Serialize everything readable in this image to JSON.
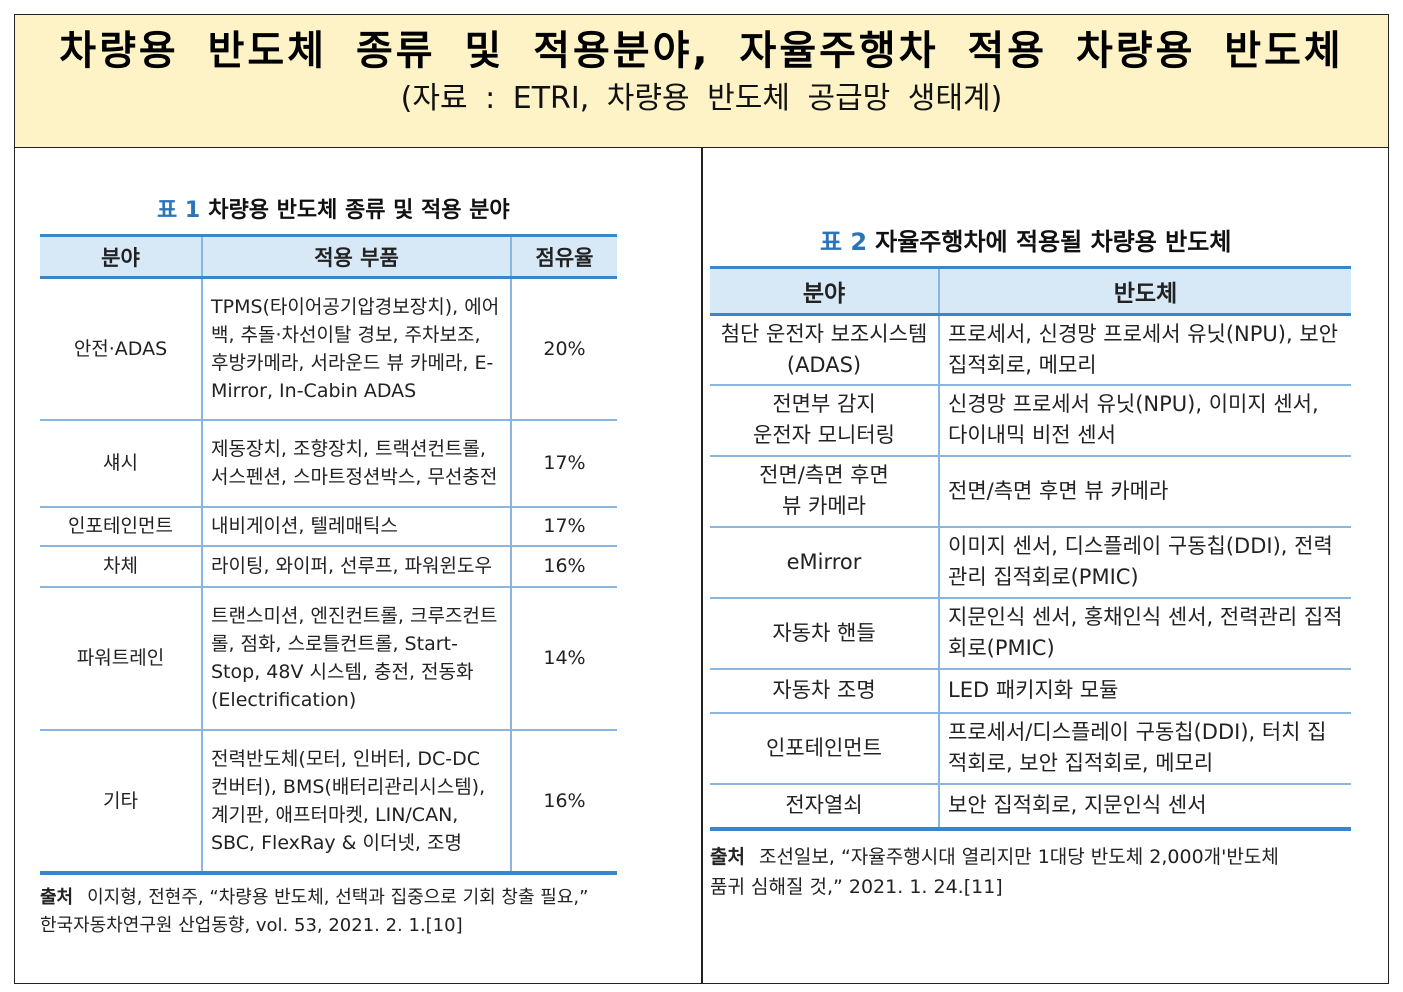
{
  "header": {
    "title": "차량용 반도체 종류 및 적용분야, 자율주행차 적용 차량용 반도체",
    "subtitle": "(자료 : ETRI, 차량용 반도체 공급망 생태계)"
  },
  "table1": {
    "caption_num": "표 1",
    "caption_text": "차량용 반도체 종류 및 적용 분야",
    "columns": [
      "분야",
      "적용 부품",
      "점유율"
    ],
    "rows": [
      {
        "field": "안전·ADAS",
        "parts": "TPMS(타이어공기압경보장치), 에어백, 추돌·차선이탈 경보, 주차보조, 후방카메라, 서라운드 뷰 카메라, E-Mirror, In-Cabin ADAS",
        "share": "20%"
      },
      {
        "field": "섀시",
        "parts": "제동장치, 조향장치, 트랙션컨트롤, 서스펜션, 스마트정션박스, 무선충전",
        "share": "17%"
      },
      {
        "field": "인포테인먼트",
        "parts": "내비게이션, 텔레매틱스",
        "share": "17%"
      },
      {
        "field": "차체",
        "parts": "라이팅, 와이퍼, 선루프, 파워윈도우",
        "share": "16%"
      },
      {
        "field": "파워트레인",
        "parts": "트랜스미션, 엔진컨트롤, 크루즈컨트롤, 점화, 스로틀컨트롤, Start-Stop, 48V 시스템, 충전, 전동화(Electrification)",
        "share": "14%"
      },
      {
        "field": "기타",
        "parts": "전력반도체(모터, 인버터, DC-DC 컨버터), BMS(배터리관리시스템), 계기판, 애프터마켓, LIN/CAN, SBC, FlexRay & 이더넷, 조명",
        "share": "16%"
      }
    ],
    "source_label": "출처",
    "source_line1": "이지형, 전현주, “차량용 반도체, 선택과 집중으로 기회 창출 필요,”",
    "source_line2": "한국자동차연구원 산업동향, vol. 53, 2021. 2. 1.[10]"
  },
  "table2": {
    "caption_num": "표 2",
    "caption_text": "자율주행차에 적용될 차량용 반도체",
    "columns": [
      "분야",
      "반도체"
    ],
    "rows": [
      {
        "field_l1": "첨단 운전자 보조시스템",
        "field_l2": "(ADAS)",
        "semis": "프로세서, 신경망 프로세서 유닛(NPU), 보안 집적회로, 메모리"
      },
      {
        "field_l1": "전면부 감지",
        "field_l2": "운전자 모니터링",
        "semis": "신경망 프로세서 유닛(NPU), 이미지 센서, 다이내믹 비전 센서"
      },
      {
        "field_l1": "전면/측면 후면",
        "field_l2": "뷰 카메라",
        "semis": "전면/측면 후면 뷰 카메라"
      },
      {
        "field_l1": "eMirror",
        "field_l2": "",
        "semis": "이미지 센서, 디스플레이 구동칩(DDI), 전력관리 집적회로(PMIC)"
      },
      {
        "field_l1": "자동차 핸들",
        "field_l2": "",
        "semis": "지문인식 센서, 홍채인식 센서, 전력관리 집적회로(PMIC)"
      },
      {
        "field_l1": "자동차 조명",
        "field_l2": "",
        "semis": "LED 패키지화 모듈"
      },
      {
        "field_l1": "인포테인먼트",
        "field_l2": "",
        "semis": "프로세서/디스플레이 구동칩(DDI), 터치 집적회로, 보안 집적회로, 메모리"
      },
      {
        "field_l1": "전자열쇠",
        "field_l2": "",
        "semis": "보안 집적회로, 지문인식 센서"
      }
    ],
    "source_label": "출처",
    "source_line1": "조선일보, “자율주행시대 열리지만 1대당 반도체 2,000개'반도체",
    "source_line2": "품귀 심해질 것,” 2021. 1. 24.[11]"
  }
}
